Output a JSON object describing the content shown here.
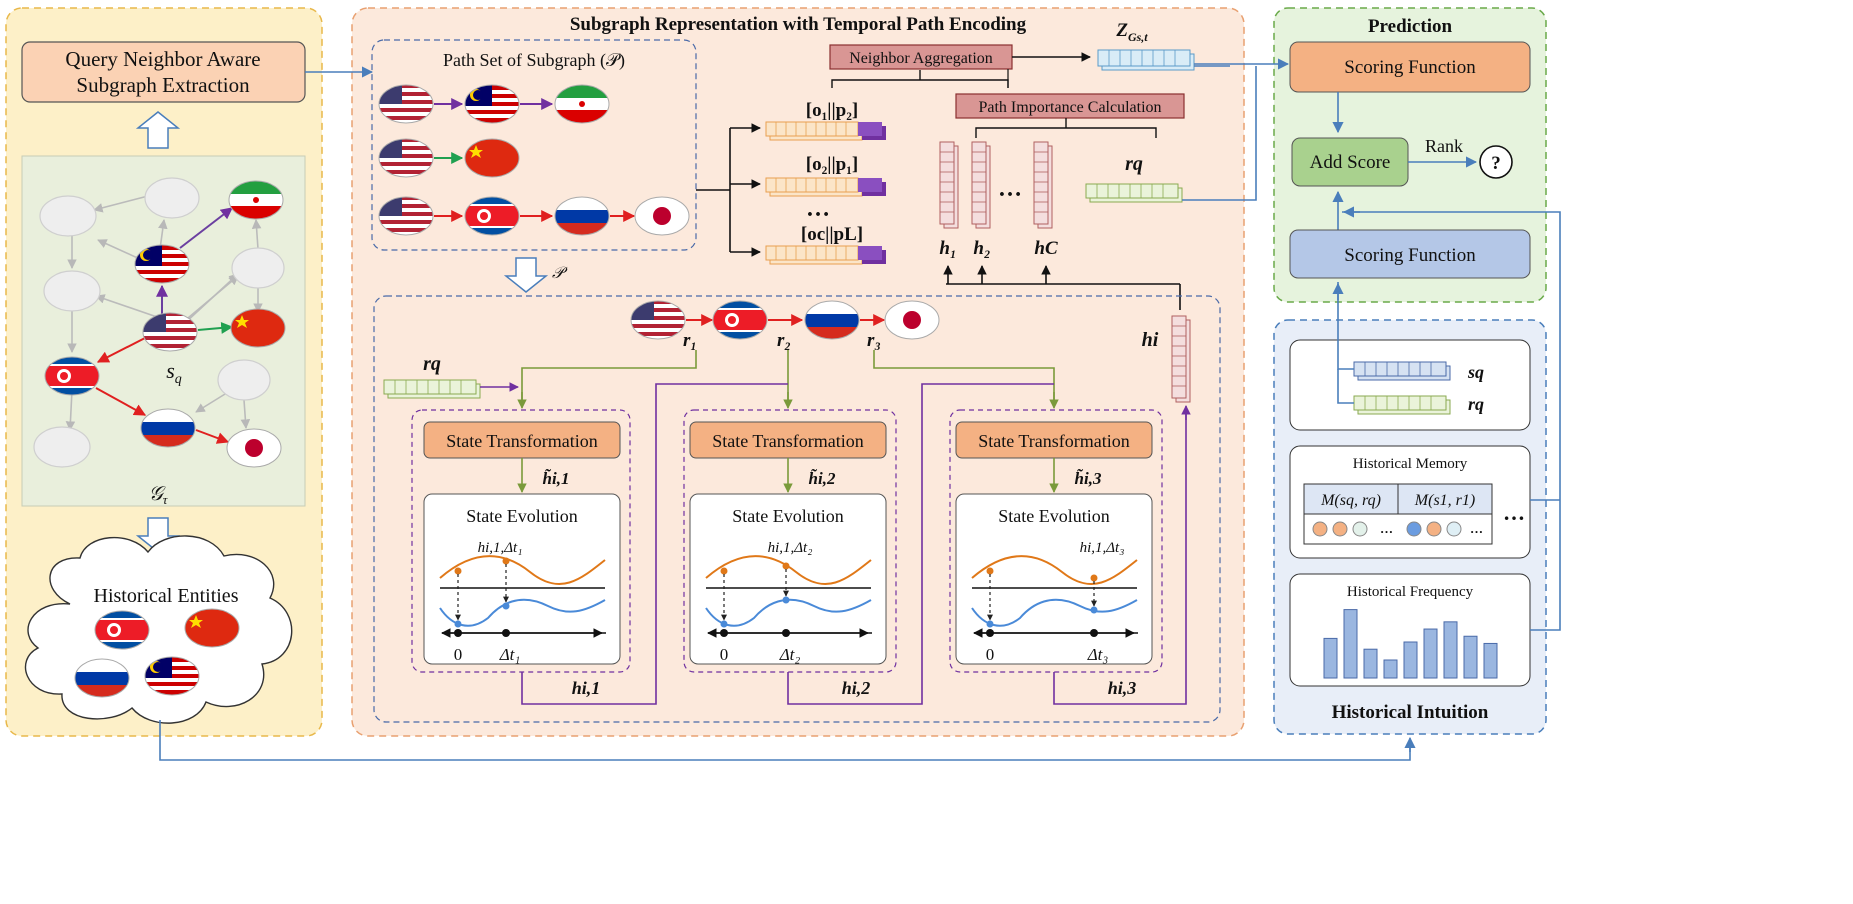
{
  "left_panel": {
    "extraction_box": "Query Neighbor Aware Subgraph Extraction",
    "extraction_line1": "Query Neighbor Aware",
    "extraction_line2": "Subgraph Extraction",
    "graph_query_label": "s",
    "graph_query_sub": "q",
    "graph_label": "𝒢",
    "graph_label_sub": "τ",
    "historical_entities": "Historical Entities"
  },
  "middle_panel": {
    "title": "Subgraph Representation with Temporal Path Encoding",
    "path_set_label": "Path Set of Subgraph (𝒫)",
    "path_symbol": "𝒫",
    "neighbor_aggregation": "Neighbor Aggregation",
    "path_importance": "Path Importance Calculation",
    "z_label": "Z",
    "z_sub": "Gs,t",
    "concat_labels": [
      "[o1||p2]",
      "[o2||p1]",
      "[oc||pL]"
    ],
    "concat_1": "[o₁||p₂]",
    "concat_2": "[o₂||p₁]",
    "concat_3": "[oc||pL]",
    "ellipsis": "…",
    "h_labels": [
      "h1",
      "h2",
      "hC"
    ],
    "h1": "h₁",
    "h2": "h₂",
    "hC": "hC",
    "rq": "rq",
    "hi": "hi",
    "relations": [
      "r1",
      "r2",
      "r3"
    ],
    "r1": "r₁",
    "r2": "r₂",
    "r3": "r₃",
    "state_transformation": "State Transformation",
    "state_evolution": "State Evolution",
    "tilde_h": [
      "h̃i,1",
      "h̃i,2",
      "h̃i,3"
    ],
    "tilde_h1": "h̃i,1",
    "tilde_h2": "h̃i,2",
    "tilde_h3": "h̃i,3",
    "evo_point": [
      "hi,1,Δt1",
      "hi,1,Δt2",
      "hi,1,Δt3"
    ],
    "evo_point1": "hi,1,Δt₁",
    "evo_point2": "hi,1,Δt₂",
    "evo_point3": "hi,1,Δt₃",
    "zero": "0",
    "delta_t": [
      "Δt1",
      "Δt2",
      "Δt3"
    ],
    "delta_t1": "Δt₁",
    "delta_t2": "Δt₂",
    "delta_t3": "Δt₃",
    "h_out": [
      "hi,1",
      "hi,2",
      "hi,3"
    ],
    "h_out1": "hi,1",
    "h_out2": "hi,2",
    "h_out3": "hi,3"
  },
  "right_panel": {
    "prediction_title": "Prediction",
    "scoring_function_top": "Scoring Function",
    "add_score": "Add Score",
    "rank": "Rank",
    "question": "?",
    "scoring_function_bottom": "Scoring Function",
    "sq": "sq",
    "rq": "rq",
    "historical_memory": "Historical Memory",
    "memory_cols": [
      "M(sq, rq)",
      "M(s1, r1)"
    ],
    "memory_col1": "M(sq, rq)",
    "memory_col2": "M(s1, r1)",
    "memory_ellipsis": "…",
    "historical_frequency": "Historical Frequency",
    "frequency_bars": [
      0.55,
      0.95,
      0.4,
      0.25,
      0.5,
      0.68,
      0.78,
      0.58,
      0.48
    ],
    "historical_intuition": "Historical Intuition"
  },
  "colors": {
    "left_bg": "#fdf0c8",
    "mid_bg": "#fce9dc",
    "pred_bg": "#e6f3dd",
    "intuition_bg": "#e8eef8",
    "orange_box": "#f4b183",
    "blue_box": "#b4c7e7",
    "green_box": "#a9d18e",
    "pink_box": "#d99694",
    "connector_blue": "#4a7ebb",
    "purple": "#7030a0",
    "green_line": "#7a9a3a"
  }
}
